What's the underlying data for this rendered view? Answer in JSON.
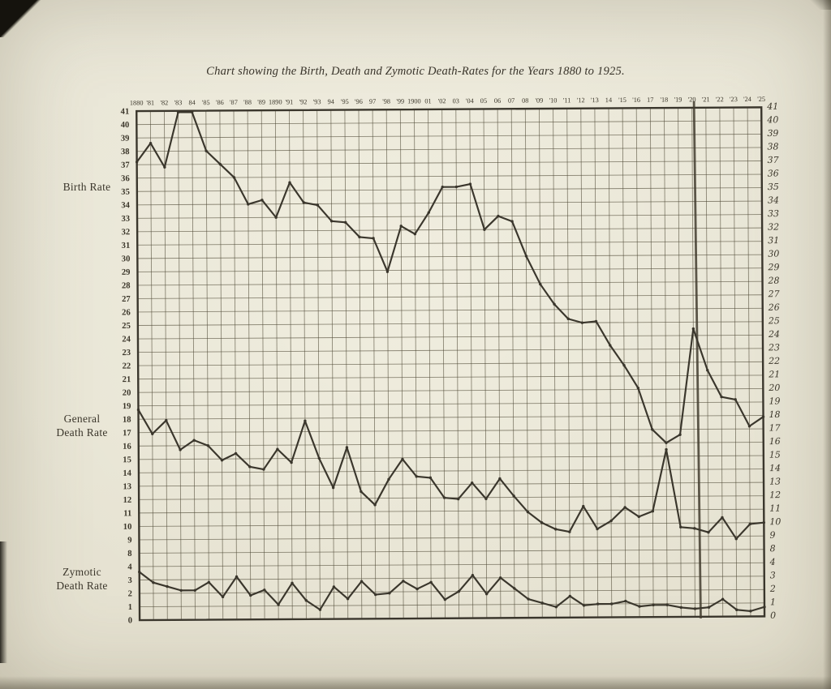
{
  "page": {
    "title": "Chart showing the Birth, Death and Zymotic Death-Rates for the Years 1880 to 1925.",
    "series_margin_labels": {
      "birth": "Birth Rate",
      "general_line1": "General",
      "general_line2": "Death Rate",
      "zymotic_line1": "Zymotic",
      "zymotic_line2": "Death Rate"
    }
  },
  "colors": {
    "paper": "#e9e6d7",
    "ink": "#3a362c",
    "grid": "#4f4936",
    "label": "#3c372b",
    "fold_crease": "#433d2f"
  },
  "chart_data": {
    "type": "line",
    "title": "Chart showing the Birth, Death and Zymotic Death-Rates for the Years 1880 to 1925.",
    "grid": true,
    "legend_position": "left-margin",
    "x_tick_labels": [
      "1880",
      "'81",
      "'82",
      "'83",
      "84",
      "'85",
      "'86",
      "'87",
      "'88",
      "'89",
      "1890",
      "'91",
      "'92",
      "'93",
      "94",
      "'95",
      "'96",
      "97",
      "'98",
      "'99",
      "1900",
      "01",
      "'02",
      "03",
      "'04",
      "05",
      "06",
      "07",
      "08",
      "'09",
      "'10",
      "'11",
      "'12",
      "'13",
      "14",
      "'15",
      "'16",
      "17",
      "'18",
      "'19",
      "'20",
      "'21",
      "'22",
      "'23",
      "'24",
      "'25"
    ],
    "y_axis": {
      "tick_values": [
        41,
        40,
        39,
        38,
        37,
        36,
        35,
        34,
        33,
        32,
        31,
        30,
        29,
        28,
        27,
        26,
        25,
        24,
        23,
        22,
        21,
        20,
        19,
        18,
        17,
        16,
        15,
        14,
        13,
        12,
        11,
        10,
        9,
        8,
        4,
        3,
        2,
        1,
        0
      ],
      "broken_scale_note": "scale jumps from 8 down to 4 in a single grid row (values 5-7 omitted)",
      "left_labels_style": "printed",
      "right_labels_style": "handwritten"
    },
    "series": [
      {
        "name": "Birth Rate",
        "values": [
          37.2,
          38.6,
          36.8,
          40.9,
          40.9,
          38.0,
          37.0,
          36.0,
          34.0,
          34.3,
          33.0,
          35.6,
          34.1,
          33.9,
          32.7,
          32.6,
          31.5,
          31.4,
          28.9,
          32.3,
          31.7,
          33.3,
          35.2,
          35.2,
          35.4,
          32.0,
          33.0,
          32.6,
          30.0,
          27.9,
          26.4,
          25.3,
          25.0,
          25.1,
          23.3,
          21.8,
          20.1,
          17.0,
          16.0,
          16.6,
          24.5,
          21.4,
          19.4,
          19.2,
          17.2,
          17.9
        ]
      },
      {
        "name": "General Death Rate",
        "values": [
          18.7,
          16.9,
          17.9,
          15.7,
          16.4,
          16.0,
          14.9,
          15.4,
          14.4,
          14.2,
          15.7,
          14.7,
          17.8,
          15.0,
          12.8,
          15.8,
          12.5,
          11.5,
          13.4,
          14.9,
          13.6,
          13.5,
          12.0,
          11.9,
          13.1,
          11.9,
          13.4,
          12.1,
          10.9,
          10.1,
          9.6,
          9.4,
          11.3,
          9.6,
          10.2,
          11.2,
          10.5,
          10.9,
          15.5,
          9.7,
          9.6,
          9.3,
          10.4,
          8.8,
          9.9,
          10.0
        ]
      },
      {
        "name": "Zymotic Death Rate",
        "values": [
          3.6,
          2.8,
          2.5,
          2.2,
          2.2,
          2.8,
          1.7,
          3.2,
          1.8,
          2.2,
          1.1,
          2.7,
          1.4,
          0.7,
          2.4,
          1.5,
          2.8,
          1.8,
          1.9,
          2.8,
          2.2,
          2.7,
          1.4,
          2.0,
          3.2,
          1.8,
          3.0,
          2.2,
          1.4,
          1.1,
          0.8,
          1.6,
          0.9,
          1.0,
          1.0,
          1.2,
          0.8,
          0.9,
          0.9,
          0.7,
          0.6,
          0.7,
          1.3,
          0.5,
          0.4,
          0.7
        ]
      }
    ],
    "annotations": {
      "page_crease_at_year": "'20"
    }
  }
}
